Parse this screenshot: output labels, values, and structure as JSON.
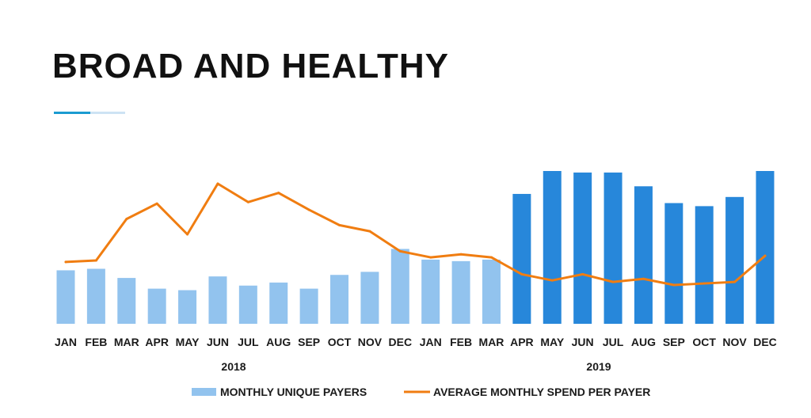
{
  "page": {
    "title": "BROAD AND HEALTHY",
    "accent_colors": [
      "#1b9bd1",
      "#cde3f4"
    ]
  },
  "chart_data": {
    "type": "bar",
    "title": "BROAD AND HEALTHY",
    "categories": [
      "JAN",
      "FEB",
      "MAR",
      "APR",
      "MAY",
      "JUN",
      "JUL",
      "AUG",
      "SEP",
      "OCT",
      "NOV",
      "DEC",
      "JAN",
      "FEB",
      "MAR",
      "APR",
      "MAY",
      "JUN",
      "JUL",
      "AUG",
      "SEP",
      "OCT",
      "NOV",
      "DEC"
    ],
    "year_groups": [
      {
        "label": "2018",
        "start": 0,
        "end": 11
      },
      {
        "label": "2019",
        "start": 12,
        "end": 23
      }
    ],
    "series": [
      {
        "name": "MONTHLY UNIQUE PAYERS",
        "type": "bar",
        "values": [
          35,
          36,
          30,
          23,
          22,
          31,
          25,
          27,
          23,
          32,
          34,
          49,
          42,
          41,
          42,
          85,
          100,
          99,
          99,
          90,
          79,
          77,
          83,
          100
        ],
        "color_light": "#92c3ee",
        "color_dark": "#2787da",
        "dark_from_index": 15
      },
      {
        "name": "AVERAGE MONTHLY SPEND PER PAYER",
        "type": "line",
        "values": [
          40,
          41,
          68,
          78,
          58,
          91,
          79,
          85,
          74,
          64,
          60,
          47,
          43,
          45,
          43,
          32,
          28,
          32,
          27,
          29,
          25,
          26,
          27,
          44
        ],
        "color": "#f07d11"
      }
    ],
    "xlabel": "",
    "ylabel": "",
    "ylim": [
      0,
      100
    ],
    "grid": false,
    "legend_position": "bottom"
  }
}
